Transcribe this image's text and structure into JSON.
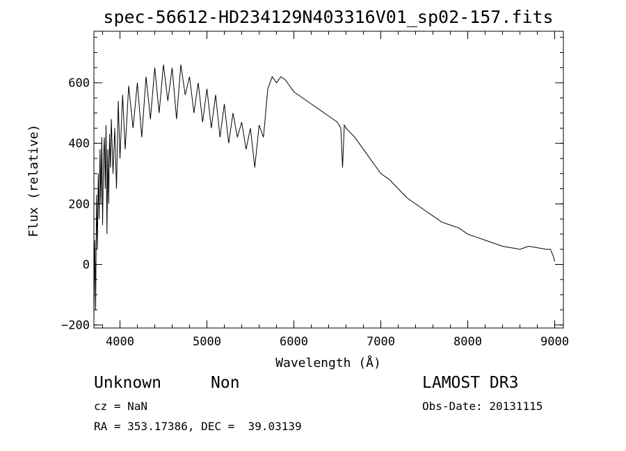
{
  "chart_data": {
    "type": "line",
    "title": "spec-56612-HD234129N403316V01_sp02-157.fits",
    "xlabel": "Wavelength (Å)",
    "ylabel": "Flux (relative)",
    "xlim": [
      3700,
      9100
    ],
    "ylim": [
      -210,
      770
    ],
    "xticks": [
      4000,
      5000,
      6000,
      7000,
      8000,
      9000
    ],
    "yticks": [
      -200,
      0,
      200,
      400,
      600
    ],
    "x_minor_step": 200,
    "y_minor_step": 50,
    "grid": false,
    "series": [
      {
        "x": [
          3700,
          3710,
          3720,
          3730,
          3740,
          3750,
          3760,
          3770,
          3780,
          3790,
          3800,
          3810,
          3820,
          3830,
          3840,
          3850,
          3860,
          3870,
          3880,
          3890,
          3900,
          3920,
          3940,
          3960,
          3980,
          4000,
          4030,
          4060,
          4100,
          4150,
          4200,
          4250,
          4300,
          4350,
          4400,
          4450,
          4500,
          4550,
          4600,
          4650,
          4700,
          4750,
          4800,
          4850,
          4900,
          4950,
          5000,
          5050,
          5100,
          5150,
          5200,
          5250,
          5300,
          5350,
          5400,
          5450,
          5500,
          5550,
          5600,
          5650,
          5700,
          5750,
          5800,
          5850,
          5900,
          6000,
          6100,
          6200,
          6300,
          6400,
          6500,
          6540,
          6560,
          6580,
          6600,
          6700,
          6800,
          6900,
          7000,
          7100,
          7200,
          7300,
          7400,
          7500,
          7600,
          7700,
          7800,
          7900,
          8000,
          8100,
          8200,
          8300,
          8400,
          8500,
          8600,
          8700,
          8800,
          8900,
          8950,
          8980,
          9000
        ],
        "y": [
          -180,
          80,
          -150,
          230,
          50,
          300,
          150,
          380,
          200,
          420,
          130,
          350,
          420,
          250,
          460,
          100,
          380,
          200,
          430,
          320,
          480,
          300,
          450,
          250,
          540,
          350,
          560,
          380,
          590,
          450,
          600,
          420,
          620,
          480,
          650,
          500,
          660,
          540,
          650,
          480,
          660,
          560,
          620,
          500,
          600,
          470,
          580,
          450,
          560,
          420,
          530,
          400,
          500,
          420,
          470,
          380,
          450,
          320,
          460,
          420,
          580,
          620,
          600,
          620,
          610,
          570,
          550,
          530,
          510,
          490,
          470,
          450,
          320,
          460,
          450,
          420,
          380,
          340,
          300,
          280,
          250,
          220,
          200,
          180,
          160,
          140,
          130,
          120,
          100,
          90,
          80,
          70,
          60,
          55,
          50,
          60,
          55,
          50,
          50,
          30,
          10
        ]
      }
    ]
  },
  "annotations": {
    "object_name": "Unknown",
    "object_class": "Non",
    "survey": "LAMOST DR3",
    "cz": "cz = NaN",
    "obs_date": "Obs-Date: 20131115",
    "coords": "RA = 353.17386, DEC =  39.03139"
  }
}
